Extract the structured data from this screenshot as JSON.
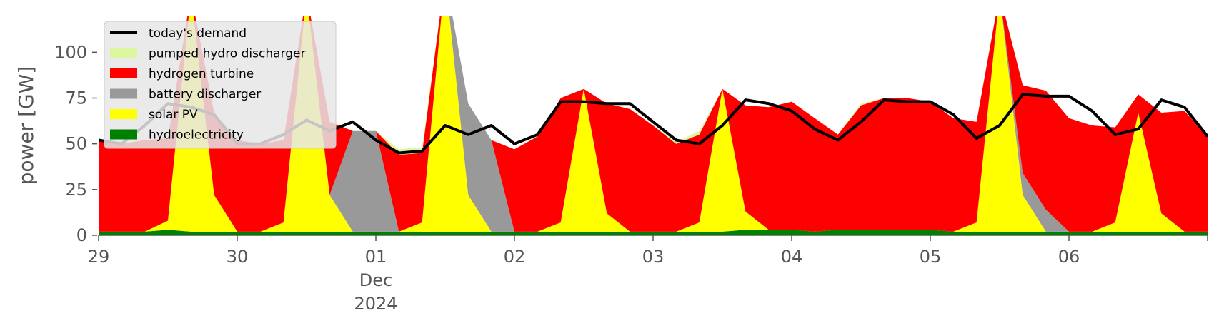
{
  "chart_data": {
    "type": "area",
    "title": "",
    "xlabel": "",
    "ylabel": "power [GW]",
    "ylim": [
      0,
      120
    ],
    "yticks": [
      0,
      25,
      50,
      75,
      100
    ],
    "xlim_days": [
      "2024-11-29",
      "2024-12-06"
    ],
    "xticks": [
      {
        "date": "2024-11-29",
        "label": "29"
      },
      {
        "date": "2024-11-30",
        "label": "30"
      },
      {
        "date": "2024-12-01",
        "label": "01",
        "sub1": "Dec",
        "sub2": "2024"
      },
      {
        "date": "2024-12-02",
        "label": "02"
      },
      {
        "date": "2024-12-03",
        "label": "03"
      },
      {
        "date": "2024-12-04",
        "label": "04"
      },
      {
        "date": "2024-12-05",
        "label": "05"
      },
      {
        "date": "2024-12-06",
        "label": "06"
      }
    ],
    "legend_position": "top-left",
    "grid": false,
    "x": [
      "2024-11-29 00:00",
      "2024-11-29 04:00",
      "2024-11-29 08:00",
      "2024-11-29 12:00",
      "2024-11-29 16:00",
      "2024-11-29 20:00",
      "2024-11-30 00:00",
      "2024-11-30 04:00",
      "2024-11-30 08:00",
      "2024-11-30 12:00",
      "2024-11-30 16:00",
      "2024-11-30 20:00",
      "2024-12-01 00:00",
      "2024-12-01 04:00",
      "2024-12-01 08:00",
      "2024-12-01 12:00",
      "2024-12-01 16:00",
      "2024-12-01 20:00",
      "2024-12-02 00:00",
      "2024-12-02 04:00",
      "2024-12-02 08:00",
      "2024-12-02 12:00",
      "2024-12-02 16:00",
      "2024-12-02 20:00",
      "2024-12-03 00:00",
      "2024-12-03 04:00",
      "2024-12-03 08:00",
      "2024-12-03 12:00",
      "2024-12-03 16:00",
      "2024-12-03 20:00",
      "2024-12-04 00:00",
      "2024-12-04 04:00",
      "2024-12-04 08:00",
      "2024-12-04 12:00",
      "2024-12-04 16:00",
      "2024-12-04 20:00",
      "2024-12-05 00:00",
      "2024-12-05 04:00",
      "2024-12-05 08:00",
      "2024-12-05 12:00",
      "2024-12-05 16:00",
      "2024-12-05 20:00",
      "2024-12-06 00:00",
      "2024-12-06 04:00",
      "2024-12-06 08:00",
      "2024-12-06 12:00",
      "2024-12-06 16:00",
      "2024-12-06 20:00",
      "2024-12-07 00:00"
    ],
    "series": [
      {
        "name": "hydroelectricity",
        "color": "#008000",
        "values": [
          2,
          2,
          2,
          3,
          2,
          2,
          2,
          2,
          2,
          2,
          2,
          2,
          2,
          2,
          2,
          2,
          2,
          2,
          2,
          2,
          2,
          2,
          2,
          2,
          2,
          2,
          2,
          2,
          3,
          3,
          3,
          2,
          3,
          3,
          3,
          3,
          3,
          2,
          2,
          2,
          2,
          2,
          2,
          2,
          2,
          2,
          2,
          2,
          2
        ]
      },
      {
        "name": "solar PV",
        "color": "#ffff00",
        "values": [
          0,
          0,
          0,
          5,
          130,
          20,
          0,
          0,
          5,
          130,
          20,
          0,
          0,
          0,
          5,
          140,
          20,
          0,
          0,
          0,
          5,
          78,
          10,
          0,
          0,
          0,
          5,
          78,
          10,
          0,
          0,
          0,
          0,
          0,
          0,
          0,
          0,
          0,
          5,
          130,
          20,
          0,
          0,
          0,
          5,
          65,
          10,
          0,
          0
        ]
      },
      {
        "name": "battery discharger",
        "color": "#999999",
        "values": [
          0,
          0,
          0,
          0,
          0,
          0,
          0,
          0,
          0,
          0,
          0,
          55,
          55,
          0,
          0,
          0,
          50,
          50,
          0,
          0,
          0,
          0,
          0,
          0,
          0,
          0,
          0,
          0,
          0,
          0,
          0,
          0,
          0,
          0,
          0,
          0,
          0,
          0,
          0,
          0,
          12,
          12,
          0,
          0,
          0,
          0,
          0,
          0,
          0
        ]
      },
      {
        "name": "hydrogen turbine",
        "color": "#ff0000",
        "values": [
          50,
          48,
          50,
          45,
          0,
          45,
          50,
          48,
          45,
          0,
          40,
          0,
          0,
          42,
          38,
          0,
          0,
          0,
          45,
          52,
          68,
          0,
          60,
          67,
          58,
          48,
          48,
          0,
          58,
          67,
          70,
          62,
          52,
          68,
          72,
          72,
          70,
          62,
          55,
          0,
          48,
          65,
          62,
          58,
          52,
          10,
          55,
          66,
          52
        ]
      },
      {
        "name": "pumped hydro discharger",
        "color": "#ddf7a0",
        "values": [
          0,
          0,
          0,
          0,
          0,
          0,
          0,
          0,
          0,
          0,
          0,
          0,
          0,
          3,
          3,
          0,
          0,
          0,
          0,
          0,
          0,
          0,
          0,
          0,
          0,
          1,
          2,
          0,
          0,
          0,
          0,
          0,
          0,
          1,
          0,
          0,
          0,
          0,
          0,
          0,
          0,
          0,
          0,
          0,
          0,
          0,
          0,
          0,
          0
        ]
      }
    ],
    "demand": {
      "name": "today's demand",
      "color": "#000000",
      "values": [
        52,
        50,
        60,
        72,
        70,
        66,
        50,
        50,
        55,
        63,
        57,
        62,
        52,
        45,
        46,
        60,
        55,
        60,
        50,
        55,
        73,
        73,
        72,
        72,
        62,
        52,
        50,
        60,
        74,
        72,
        68,
        58,
        52,
        62,
        74,
        73,
        73,
        66,
        53,
        60,
        77,
        76,
        76,
        68,
        55,
        58,
        74,
        70,
        54
      ]
    }
  },
  "legend": {
    "items": [
      {
        "label": "today's demand",
        "kind": "line",
        "color": "#000000"
      },
      {
        "label": "pumped hydro discharger",
        "kind": "patch",
        "color": "#ddf7a0"
      },
      {
        "label": "hydrogen turbine",
        "kind": "patch",
        "color": "#ff0000"
      },
      {
        "label": "battery discharger",
        "kind": "patch",
        "color": "#999999"
      },
      {
        "label": "solar PV",
        "kind": "patch",
        "color": "#ffff00"
      },
      {
        "label": "hydroelectricity",
        "kind": "patch",
        "color": "#008000"
      }
    ]
  }
}
